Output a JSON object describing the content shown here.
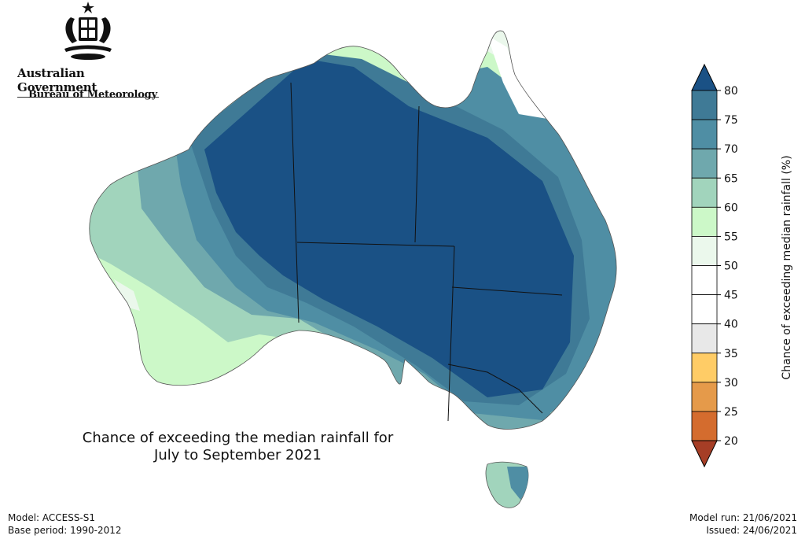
{
  "logo": {
    "government": "Australian Government",
    "agency": "Bureau of Meteorology",
    "icon": "commonwealth-coat-of-arms-icon"
  },
  "map": {
    "title_line1": "Chance of exceeding the median rainfall for",
    "title_line2": "July to September 2021",
    "region": "Australia",
    "land_outline_color": "#000000"
  },
  "colorbar": {
    "title": "Chance of exceeding median rainfall (%)",
    "ticks": [
      "20",
      "25",
      "30",
      "35",
      "40",
      "45",
      "50",
      "55",
      "60",
      "65",
      "70",
      "75",
      "80"
    ],
    "bins": [
      {
        "range": "75-80",
        "color": "#3f7a96"
      },
      {
        "range": "70-75",
        "color": "#4f8ea4"
      },
      {
        "range": "65-70",
        "color": "#6fa8ad"
      },
      {
        "range": "60-65",
        "color": "#a1d4bc"
      },
      {
        "range": "55-60",
        "color": "#ccf8c8"
      },
      {
        "range": "50-55",
        "color": "#ebf8ec"
      },
      {
        "range": "45-50",
        "color": "#ffffff"
      },
      {
        "range": "40-45",
        "color": "#ffffff"
      },
      {
        "range": "35-40",
        "color": "#e8e8e8"
      },
      {
        "range": "30-35",
        "color": "#ffcc66"
      },
      {
        "range": "25-30",
        "color": "#e59a4a"
      },
      {
        "range": "20-25",
        "color": "#d46c2e"
      }
    ],
    "over_color": "#1a5185",
    "under_color": "#a63e26"
  },
  "footer": {
    "model": "Model: ACCESS-S1",
    "base_period": "Base period: 1990-2012",
    "model_run": "Model run: 21/06/2021",
    "issued": "Issued: 24/06/2021"
  }
}
